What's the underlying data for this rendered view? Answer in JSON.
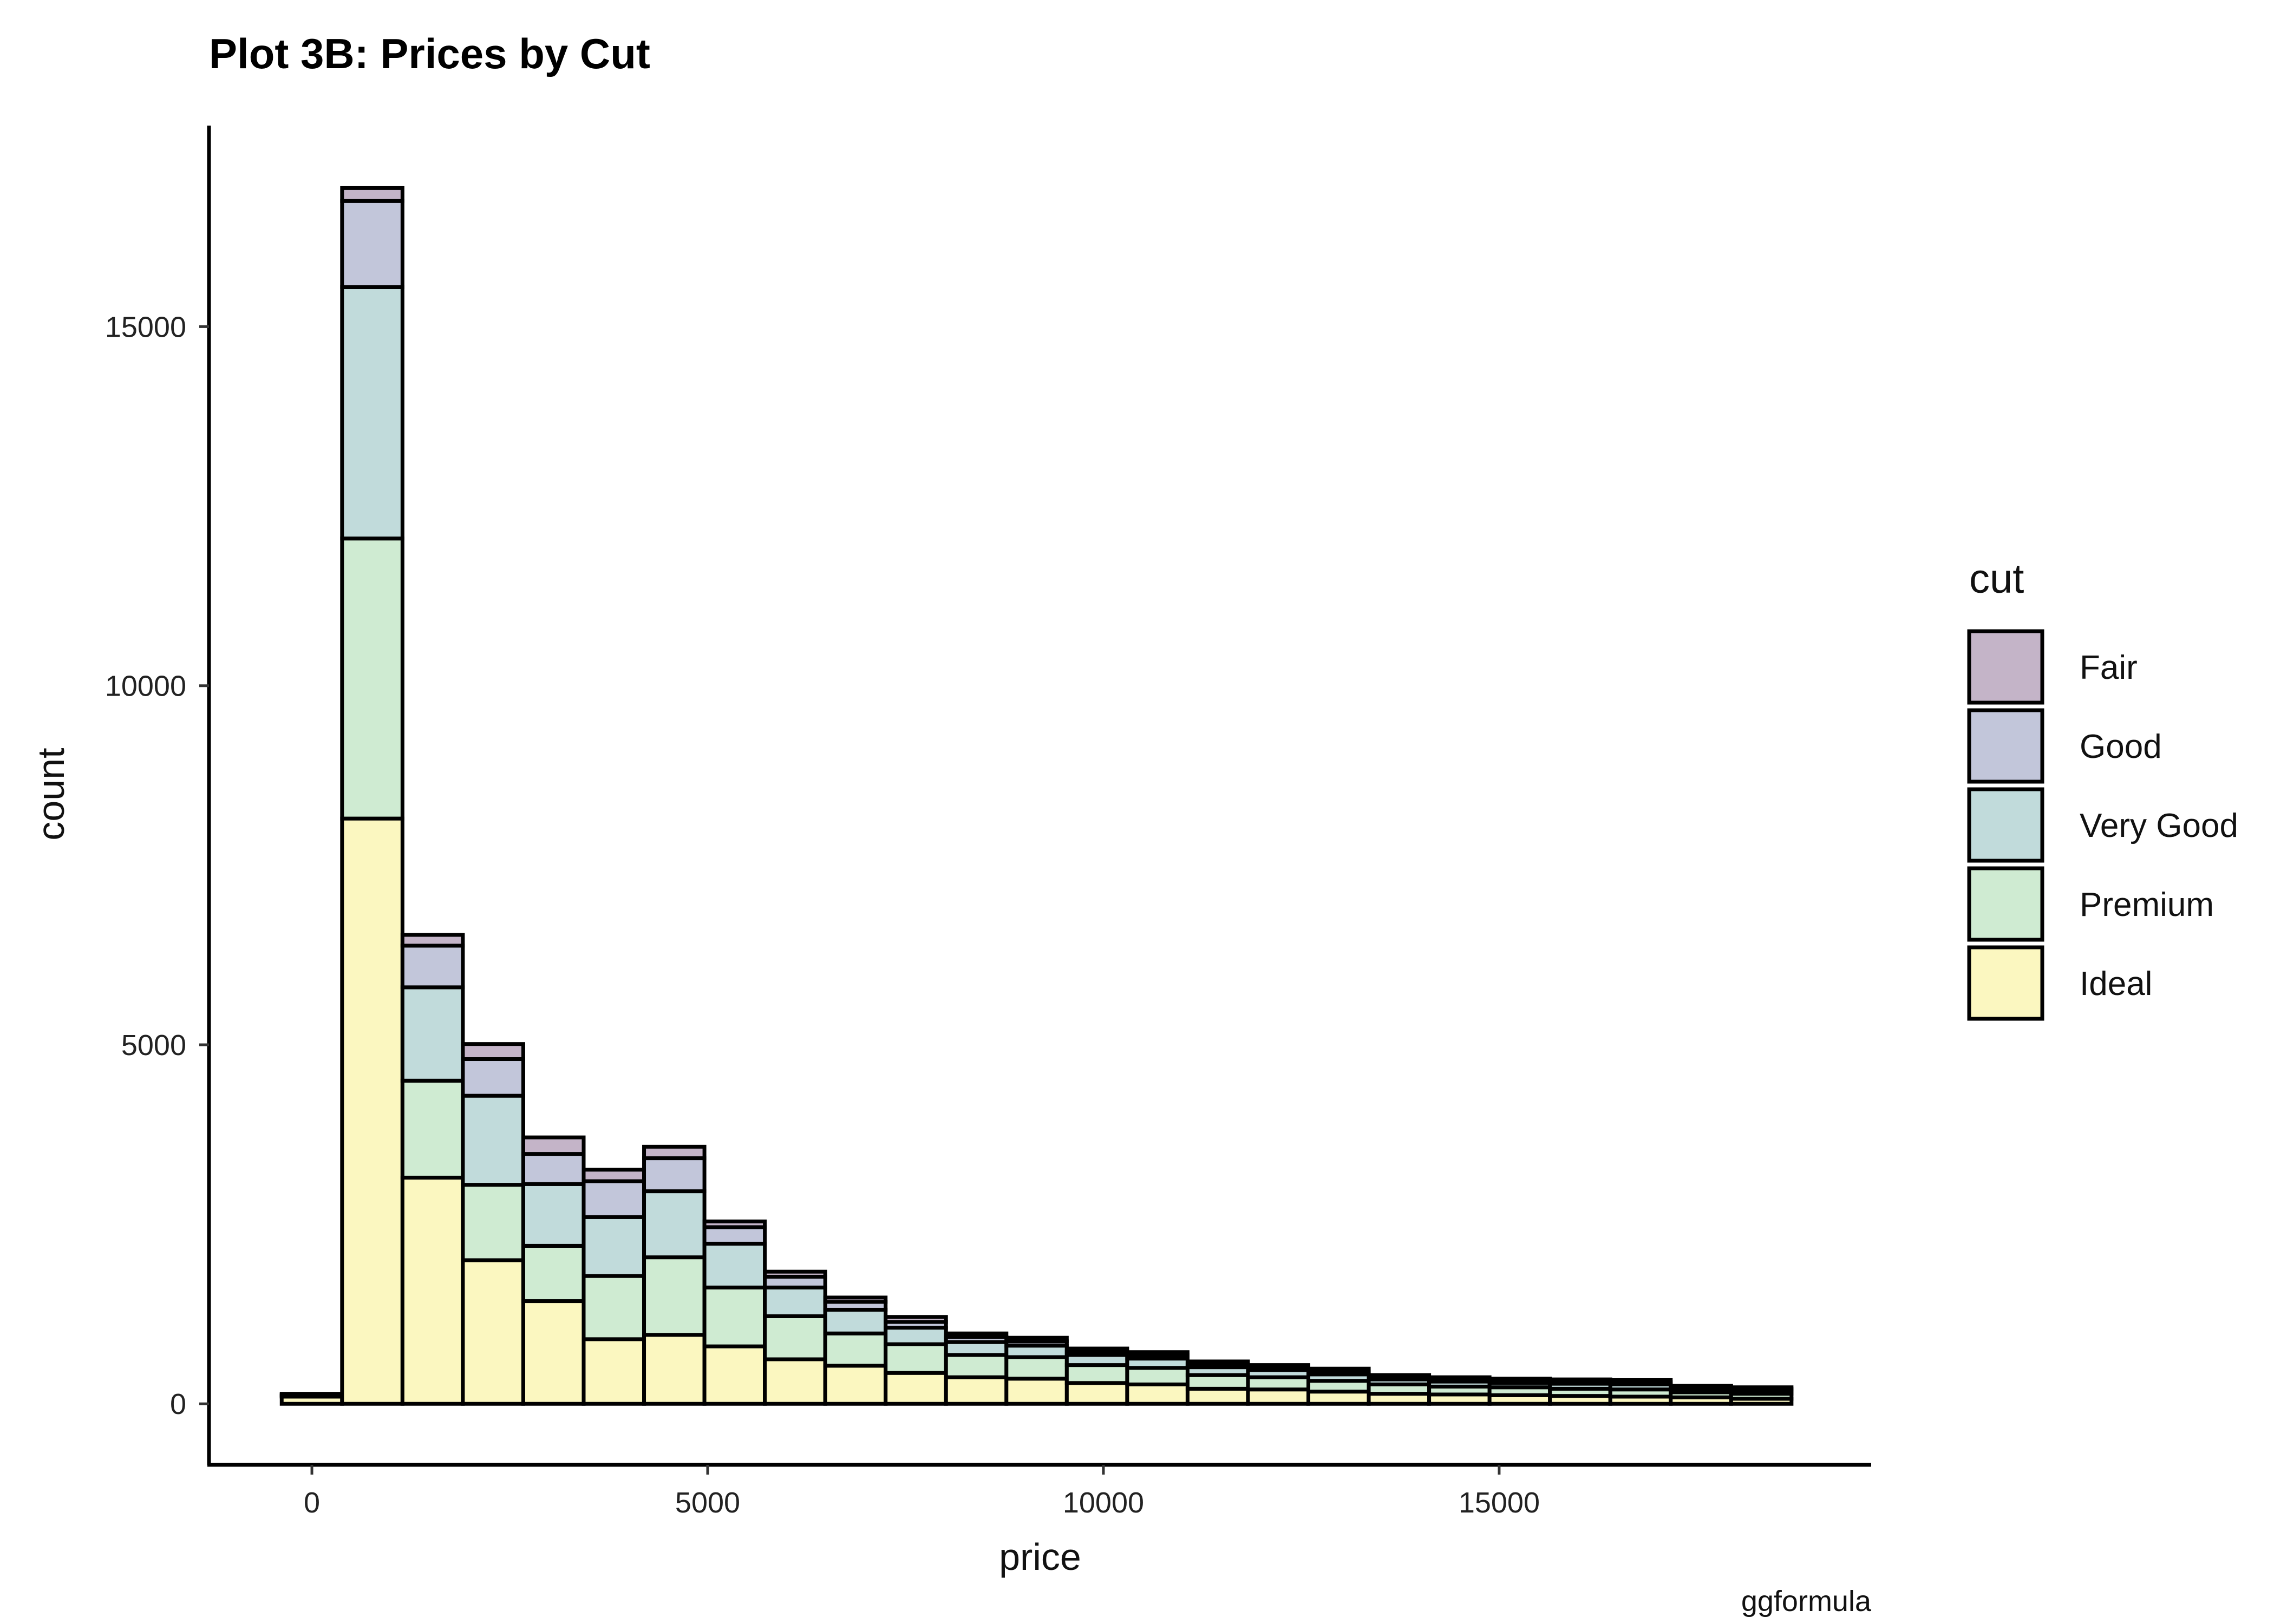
{
  "chart_data": {
    "type": "bar",
    "stacked": true,
    "title": "Plot 3B: Prices by Cut",
    "xlabel": "price",
    "ylabel": "count",
    "caption": "ggformula",
    "xlim": [
      -1300,
      19700
    ],
    "ylim": [
      -850,
      17800
    ],
    "xticks": [
      0,
      5000,
      10000,
      15000
    ],
    "yticks": [
      0,
      5000,
      10000,
      15000
    ],
    "grid": false,
    "bin_width": 763,
    "legend": {
      "title": "cut",
      "position": "right",
      "items": [
        "Fair",
        "Good",
        "Very Good",
        "Premium",
        "Ideal"
      ]
    },
    "colors": {
      "Fair": "#c4b4c8",
      "Good": "#c2c6da",
      "Very Good": "#c1dbdb",
      "Premium": "#cfebd2",
      "Ideal": "#fbf7c0"
    },
    "x": [
      0,
      763,
      1526,
      2289,
      3052,
      3815,
      4578,
      5341,
      6104,
      6867,
      7630,
      8393,
      9156,
      9919,
      10682,
      11445,
      12208,
      12971,
      13734,
      14497,
      15260,
      16023,
      16786,
      17549,
      18312
    ],
    "series": [
      {
        "name": "Ideal",
        "values": [
          100,
          8150,
          3150,
          2000,
          1430,
          900,
          960,
          800,
          620,
          530,
          430,
          370,
          350,
          290,
          270,
          210,
          200,
          170,
          140,
          130,
          120,
          110,
          100,
          90,
          70
        ]
      },
      {
        "name": "Premium",
        "values": [
          10,
          3900,
          1350,
          1050,
          770,
          880,
          1080,
          820,
          600,
          450,
          400,
          310,
          300,
          250,
          230,
          190,
          170,
          150,
          130,
          110,
          110,
          100,
          100,
          70,
          70
        ]
      },
      {
        "name": "Very Good",
        "values": [
          10,
          3500,
          1300,
          1240,
          860,
          820,
          920,
          610,
          400,
          330,
          230,
          180,
          160,
          140,
          130,
          110,
          100,
          90,
          70,
          70,
          60,
          70,
          70,
          50,
          50
        ]
      },
      {
        "name": "Good",
        "values": [
          10,
          1200,
          580,
          510,
          420,
          500,
          460,
          230,
          150,
          110,
          80,
          70,
          60,
          50,
          50,
          40,
          40,
          40,
          30,
          30,
          30,
          30,
          30,
          20,
          20
        ]
      },
      {
        "name": "Fair",
        "values": [
          10,
          180,
          150,
          210,
          230,
          160,
          160,
          80,
          70,
          60,
          70,
          50,
          50,
          40,
          40,
          40,
          30,
          40,
          30,
          30,
          30,
          30,
          30,
          20,
          20
        ]
      }
    ]
  }
}
